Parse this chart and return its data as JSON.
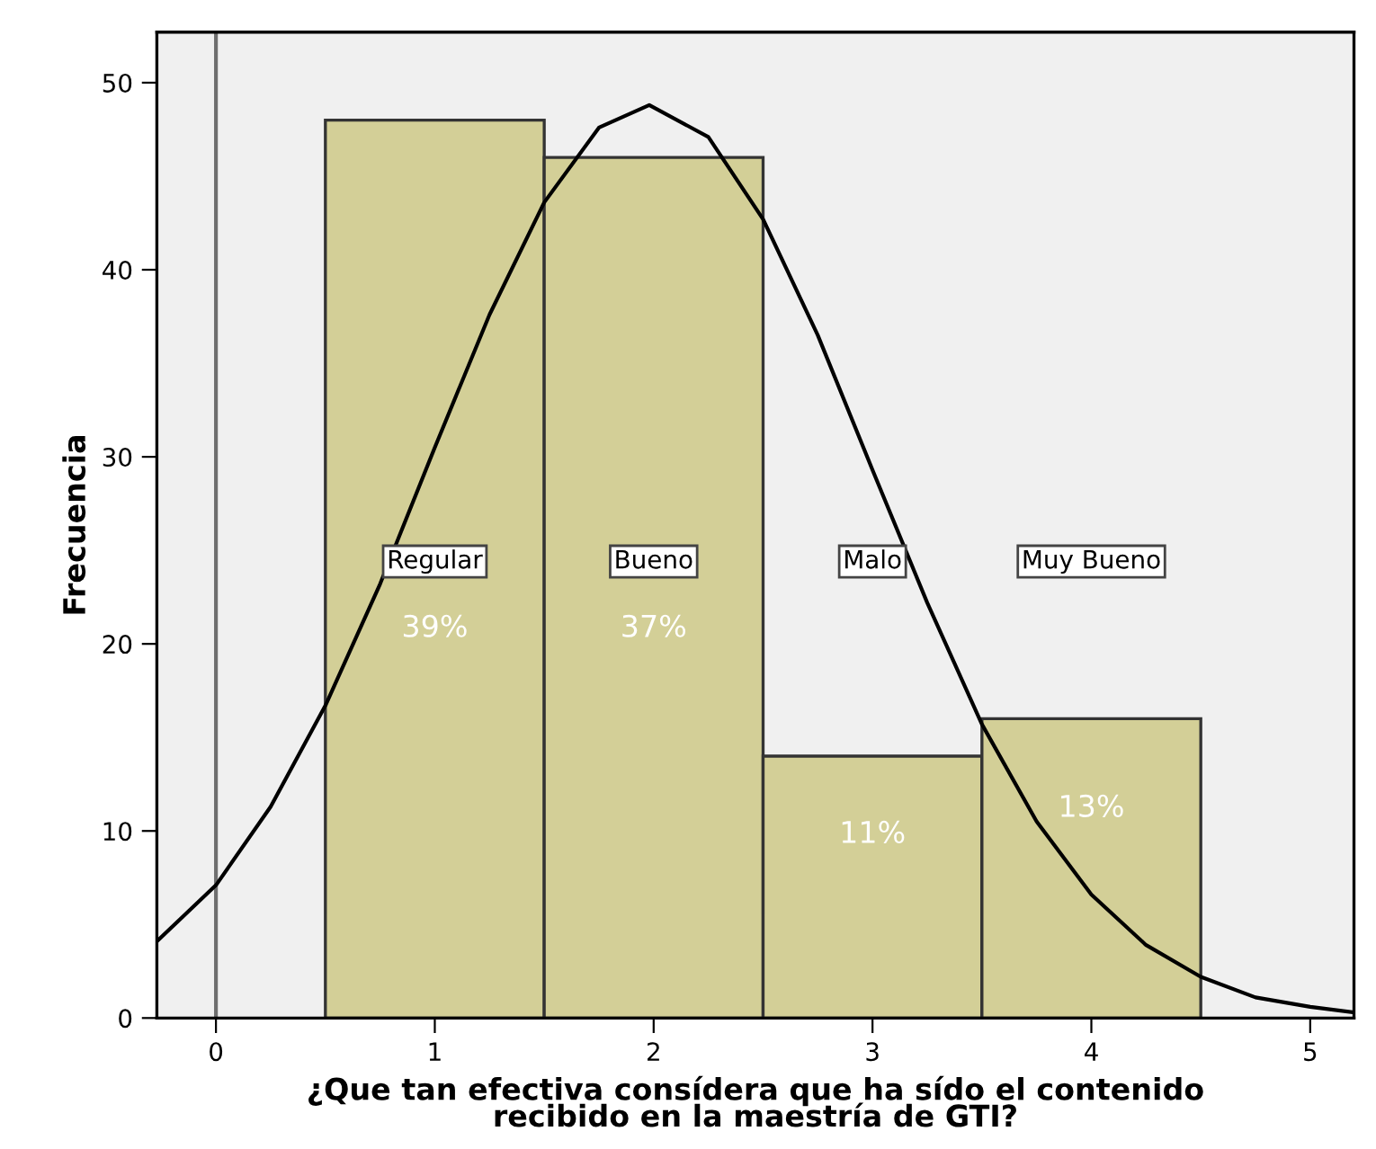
{
  "chart_data": {
    "type": "histogram",
    "xlabel": "¿Que tan efectiva consídera que ha sído el contenido\nrecibido en la maestría de GTI?",
    "ylabel": "Frecuencia",
    "bins": [
      0.5,
      1.5,
      2.5,
      3.5,
      4.5
    ],
    "values": [
      48,
      46,
      14,
      16
    ],
    "color": "#d3cf97",
    "series": [
      {
        "type": "line",
        "color": "#000000",
        "x": [
          -0.27,
          0,
          0.25,
          0.5,
          0.75,
          1.0,
          1.25,
          1.5,
          1.75,
          1.98,
          2.25,
          2.5,
          2.75,
          3.0,
          3.25,
          3.5,
          3.75,
          4.0,
          4.25,
          4.5,
          4.75,
          5.0,
          5.2
        ],
        "values": [
          4.1,
          7.1,
          11.3,
          16.7,
          23.2,
          30.5,
          37.6,
          43.6,
          47.6,
          48.8,
          47.1,
          42.7,
          36.5,
          29.3,
          22.2,
          15.7,
          10.5,
          6.6,
          3.9,
          2.2,
          1.1,
          0.6,
          0.3
        ]
      }
    ],
    "annotations": [
      "Regular",
      "39%",
      "Bueno",
      "37%",
      "Malo",
      "11%",
      "Muy Bueno",
      "13%"
    ],
    "ref_lines": [
      {
        "axis": "x",
        "value": 0,
        "color": "#6e6e6e"
      }
    ],
    "xlim": [
      -0.27,
      5.2
    ],
    "ylim": [
      0,
      52.7
    ],
    "xticks": [
      0,
      1,
      2,
      3,
      4,
      5
    ],
    "yticks": [
      0,
      10,
      20,
      30,
      40,
      50
    ],
    "grid": false
  }
}
